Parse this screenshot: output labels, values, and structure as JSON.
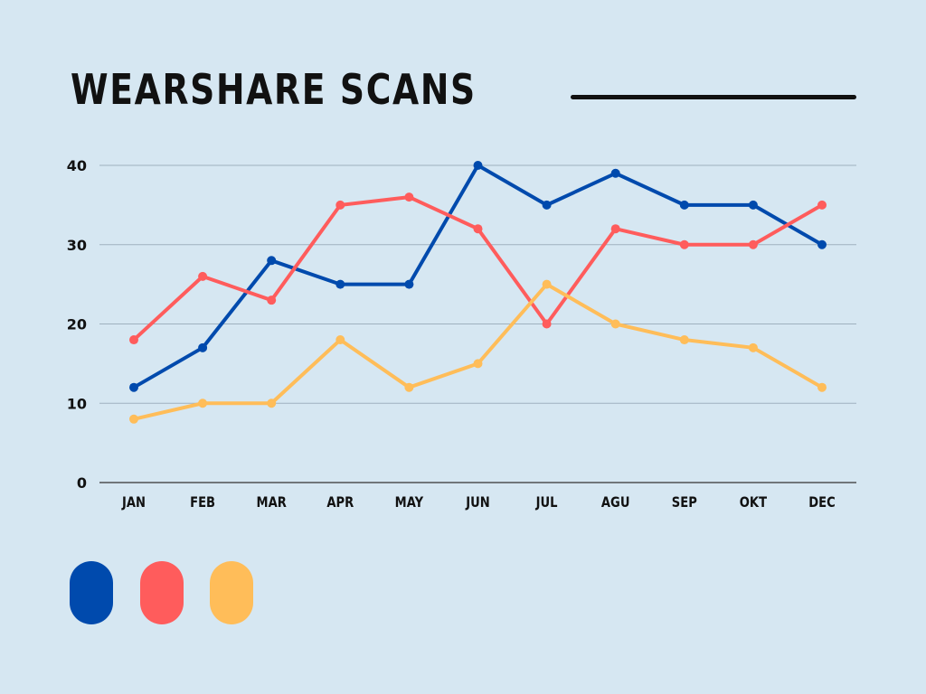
{
  "chart_data": {
    "type": "line",
    "title": "WEARSHARE SCANS",
    "categories": [
      "JAN",
      "FEB",
      "MAR",
      "APR",
      "MAY",
      "JUN",
      "JUL",
      "AGU",
      "SEP",
      "OKT",
      "DEC"
    ],
    "ylim": [
      0,
      40
    ],
    "yticks": [
      0,
      10,
      20,
      30,
      40
    ],
    "grid": true,
    "legend": "bottom-left",
    "series": [
      {
        "color": "#004aad",
        "values": [
          12,
          17,
          28,
          25,
          25,
          40,
          35,
          39,
          35,
          35,
          30
        ]
      },
      {
        "color": "#ff5c5c",
        "values": [
          18,
          26,
          23,
          35,
          36,
          32,
          20,
          32,
          30,
          30,
          35
        ]
      },
      {
        "color": "#ffbd59",
        "values": [
          8,
          10,
          10,
          18,
          12,
          15,
          25,
          20,
          18,
          17,
          12
        ]
      }
    ]
  }
}
